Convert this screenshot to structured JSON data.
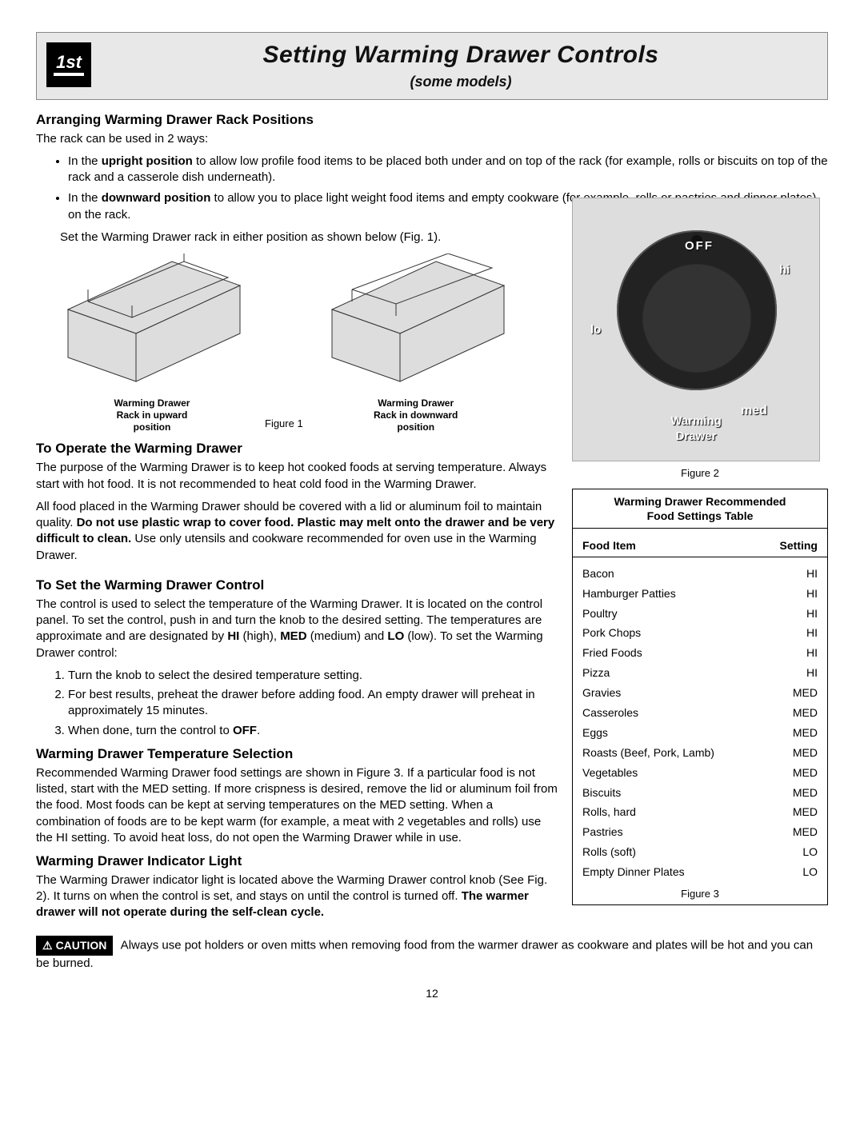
{
  "header": {
    "icon_text": "1st",
    "title": "Setting Warming Drawer Controls",
    "subtitle": "(some models)"
  },
  "section1": {
    "heading": "Arranging Warming Drawer Rack Positions",
    "intro": "The rack can be used in 2 ways:",
    "bullet1_lead": "In the ",
    "bullet1_bold": "upright position",
    "bullet1_rest": " to allow low profile food items to be placed both under and on top of the rack (for example, rolls or biscuits on top of the rack and a casserole dish underneath).",
    "bullet2_lead": "In the ",
    "bullet2_bold": "downward position",
    "bullet2_rest": " to allow you to place light weight food items and empty cookware (for example, rolls or pastries and dinner plates) on the rack.",
    "set_line": "Set the Warming Drawer rack in either position as shown below (Fig. 1)."
  },
  "figure1": {
    "caption_left_l1": "Warming Drawer",
    "caption_left_l2": "Rack in upward",
    "caption_left_l3": "position",
    "label_mid": "Figure 1",
    "caption_right_l1": "Warming Drawer",
    "caption_right_l2": "Rack in downward",
    "caption_right_l3": "position"
  },
  "knob": {
    "off": "OFF",
    "hi": "hi",
    "lo": "lo",
    "med": "med",
    "name_l1": "Warming",
    "name_l2": "Drawer",
    "caption": "Figure 2"
  },
  "section2": {
    "heading": "To Operate the Warming Drawer",
    "p1": "The purpose of the Warming Drawer is to keep hot cooked foods at serving temperature. Always start with hot food. It is not recommended to heat cold food in the Warming Drawer.",
    "p2_a": "All food placed in the Warming Drawer should be covered with a lid or aluminum foil to maintain quality. ",
    "p2_b": "Do not use plastic wrap to cover food. Plastic may melt onto the drawer and be very difficult to clean.",
    "p2_c": " Use only utensils and cookware recommended for oven use in the Warming Drawer."
  },
  "section3": {
    "heading": "To Set the Warming Drawer Control",
    "p1_a": "The control is used to select the temperature of the Warming Drawer. It is located on the control panel. To set the control, push in and turn the knob to the desired setting. The temperatures are approximate and are designated by ",
    "p1_hi": "HI",
    "p1_mid1": " (high), ",
    "p1_med": "MED",
    "p1_mid2": " (medium) and ",
    "p1_lo": "LO",
    "p1_rest": " (low). To set the Warming Drawer control:",
    "li1": "Turn the knob to select the desired temperature setting.",
    "li2": "For best results, preheat the drawer before adding food. An empty drawer will preheat in approximately 15 minutes.",
    "li3_a": "When done, turn the control to ",
    "li3_b": "OFF",
    "li3_c": "."
  },
  "section4": {
    "heading": "Warming Drawer Temperature Selection",
    "p1": "Recommended Warming Drawer food settings are shown in Figure 3. If a particular food is not listed, start with the MED setting. If more crispness is desired, remove the lid or aluminum foil from the food. Most foods can be kept at serving temperatures on the MED setting. When a combination of foods are to be kept warm (for example, a meat with 2 vegetables and rolls) use the HI setting. To avoid heat loss, do not open the Warming Drawer while in use."
  },
  "section5": {
    "heading": "Warming Drawer Indicator Light",
    "p1_a": "The Warming Drawer indicator light is located above the Warming Drawer control knob (See Fig. 2). It turns on when the control is set, and stays on until the control is turned off. ",
    "p1_b": "The warmer drawer will not operate during the self-clean cycle."
  },
  "settings_table": {
    "title_l1": "Warming Drawer Recommended",
    "title_l2": "Food Settings Table",
    "col1": "Food Item",
    "col2": "Setting",
    "rows": [
      {
        "item": "Bacon",
        "setting": "HI"
      },
      {
        "item": "Hamburger Patties",
        "setting": "HI"
      },
      {
        "item": "Poultry",
        "setting": "HI"
      },
      {
        "item": "Pork Chops",
        "setting": "HI"
      },
      {
        "item": "Fried Foods",
        "setting": "HI"
      },
      {
        "item": "Pizza",
        "setting": "HI"
      },
      {
        "item": "Gravies",
        "setting": "MED"
      },
      {
        "item": "Casseroles",
        "setting": "MED"
      },
      {
        "item": "Eggs",
        "setting": "MED"
      },
      {
        "item": "Roasts (Beef, Pork, Lamb)",
        "setting": "MED"
      },
      {
        "item": "Vegetables",
        "setting": "MED"
      },
      {
        "item": "Biscuits",
        "setting": "MED"
      },
      {
        "item": "Rolls, hard",
        "setting": "MED"
      },
      {
        "item": "Pastries",
        "setting": "MED"
      },
      {
        "item": "Rolls (soft)",
        "setting": "LO"
      },
      {
        "item": "Empty Dinner Plates",
        "setting": "LO"
      }
    ],
    "caption": "Figure 3"
  },
  "caution": {
    "badge": "CAUTION",
    "text": " Always use pot holders or oven mitts when removing food from the warmer drawer as cookware and plates will be hot and you can be burned."
  },
  "page_number": "12"
}
